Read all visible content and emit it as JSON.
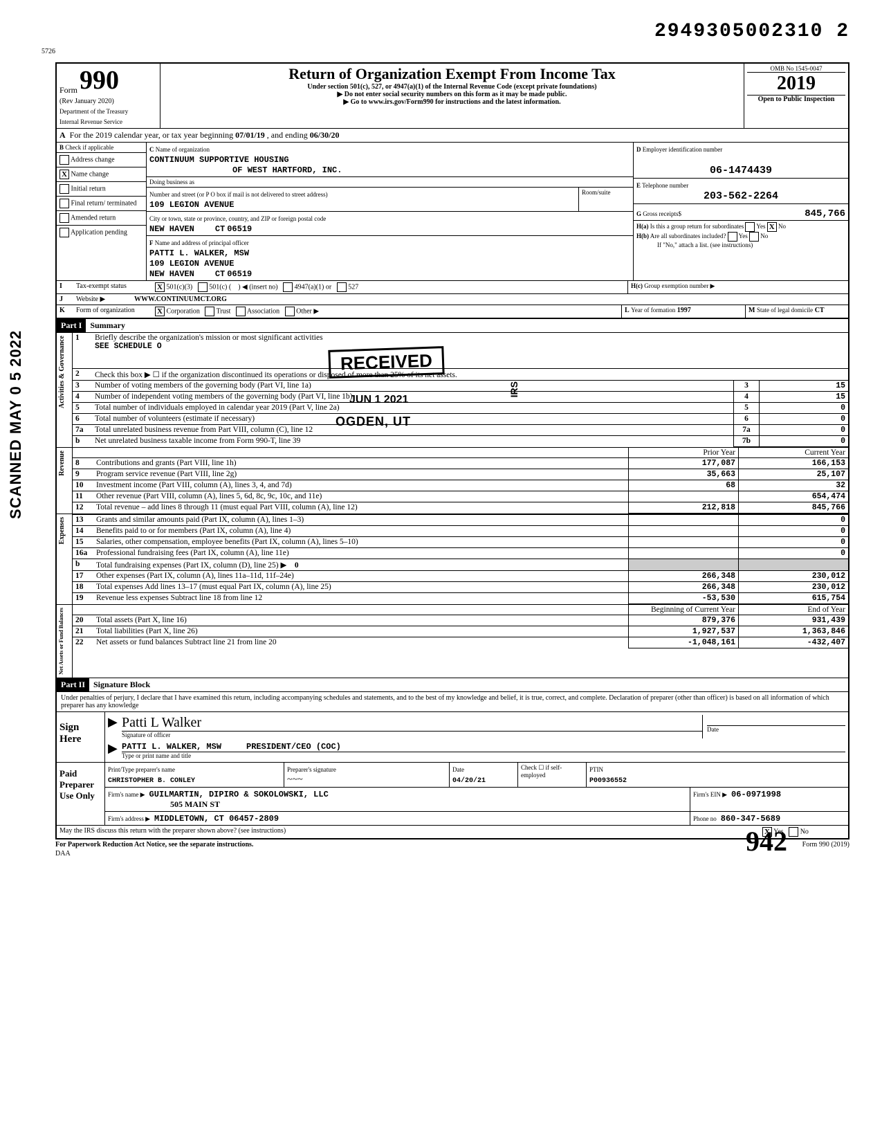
{
  "top_number": "2949305002310 2",
  "sidebar_text": "SCANNED MAY 0 5 2022",
  "header": {
    "form_word": "Form",
    "form_number": "990",
    "rev": "(Rev January 2020)",
    "dept1": "Department of the Treasury",
    "dept2": "Internal Revenue Service",
    "title": "Return of Organization Exempt From Income Tax",
    "subtitle": "Under section 501(c), 527, or 4947(a)(1) of the Internal Revenue Code (except private foundations)",
    "note_ssn": "Do not enter social security numbers on this form as it may be made public.",
    "note_web": "Go to www.irs.gov/Form990 for instructions and the latest information.",
    "omb": "OMB No 1545-0047",
    "year": "2019",
    "open": "Open to Public Inspection"
  },
  "A": {
    "text": "For the 2019 calendar year, or tax year beginning",
    "start": "07/01/19",
    "mid": ", and ending",
    "end": "06/30/20"
  },
  "B": {
    "label": "Check if applicable",
    "items": [
      {
        "label": "Address change",
        "chk": false
      },
      {
        "label": "Name change",
        "chk": true
      },
      {
        "label": "Initial return",
        "chk": false
      },
      {
        "label": "Final return/ terminated",
        "chk": false
      },
      {
        "label": "Amended return",
        "chk": false
      },
      {
        "label": "Application pending",
        "chk": false
      }
    ]
  },
  "C": {
    "name_label": "Name of organization",
    "name": "CONTINUUM SUPPORTIVE HOUSING",
    "name2": "OF WEST HARTFORD, INC.",
    "dba_label": "Doing business as",
    "street_label": "Number and street (or P O box if mail is not delivered to street address)",
    "street": "109 LEGION AVENUE",
    "city_label": "City or town, state or province, country, and ZIP or foreign postal code",
    "city": "NEW HAVEN",
    "state": "CT",
    "zip": "06519",
    "room_label": "Room/suite"
  },
  "D": {
    "label": "Employer identification number",
    "value": "06-1474439"
  },
  "E": {
    "label": "Telephone number",
    "value": "203-562-2264"
  },
  "G": {
    "label": "Gross receipts$",
    "value": "845,766"
  },
  "F": {
    "label": "Name and address of principal officer",
    "name": "PATTI L. WALKER, MSW",
    "street": "109 LEGION AVENUE",
    "city": "NEW HAVEN",
    "state": "CT",
    "zip": "06519"
  },
  "H": {
    "a_label": "Is this a group return for subordinates",
    "a_yes": false,
    "a_no": true,
    "b_label": "Are all subordinates included?",
    "b_note": "If \"No,\" attach a list. (see instructions)",
    "c_label": "Group exemption number"
  },
  "I": {
    "label": "Tax-exempt status",
    "c3": true,
    "c_other": false,
    "insert": "(insert no)",
    "a1": "4947(a)(1) or",
    "five27": "527"
  },
  "J": {
    "label": "Website",
    "value": "WWW.CONTINUUMCT.ORG"
  },
  "K": {
    "label": "Form of organization",
    "corp": true,
    "trust": "Trust",
    "assoc": "Association",
    "other": "Other"
  },
  "L": {
    "label": "Year of formation",
    "value": "1997"
  },
  "M": {
    "label": "State of legal domicile",
    "value": "CT"
  },
  "partI": {
    "title": "Part I",
    "sub": "Summary"
  },
  "gov": {
    "1": "Briefly describe the organization's mission or most significant activities",
    "1a": "SEE SCHEDULE O",
    "2": "Check this box ▶ ☐ if the organization discontinued its operations or disposed of more than 25% of its net assets.",
    "3": "Number of voting members of the governing body (Part VI, line 1a)",
    "4": "Number of independent voting members of the governing body (Part VI, line 1b)",
    "5": "Total number of individuals employed in calendar year 2019 (Part V, line 2a)",
    "6": "Total number of volunteers (estimate if necessary)",
    "7a": "Total unrelated business revenue from Part VIII, column (C), line 12",
    "7b": "Net unrelated business taxable income from Form 990-T, line 39",
    "vals": {
      "3": "15",
      "4": "15",
      "5": "0",
      "6": "0",
      "7a": "0",
      "7b": "0"
    }
  },
  "rev": {
    "prior_hdr": "Prior Year",
    "curr_hdr": "Current Year",
    "rows": [
      {
        "n": "8",
        "label": "Contributions and grants (Part VIII, line 1h)",
        "p": "177,087",
        "c": "166,153"
      },
      {
        "n": "9",
        "label": "Program service revenue (Part VIII, line 2g)",
        "p": "35,663",
        "c": "25,107"
      },
      {
        "n": "10",
        "label": "Investment income (Part VIII, column (A), lines 3, 4, and 7d)",
        "p": "68",
        "c": "32"
      },
      {
        "n": "11",
        "label": "Other revenue (Part VIII, column (A), lines 5, 6d, 8c, 9c, 10c, and 11e)",
        "p": "",
        "c": "654,474"
      },
      {
        "n": "12",
        "label": "Total revenue – add lines 8 through 11 (must equal Part VIII, column (A), line 12)",
        "p": "212,818",
        "c": "845,766"
      }
    ]
  },
  "exp": {
    "rows": [
      {
        "n": "13",
        "label": "Grants and similar amounts paid (Part IX, column (A), lines 1–3)",
        "p": "",
        "c": "0"
      },
      {
        "n": "14",
        "label": "Benefits paid to or for members (Part IX, column (A), line 4)",
        "p": "",
        "c": "0"
      },
      {
        "n": "15",
        "label": "Salaries, other compensation, employee benefits (Part IX, column (A), lines 5–10)",
        "p": "",
        "c": "0"
      },
      {
        "n": "16a",
        "label": "Professional fundraising fees (Part IX, column (A), line 11e)",
        "p": "",
        "c": "0"
      },
      {
        "n": "b",
        "label": "Total fundraising expenses (Part IX, column (D), line 25) ▶",
        "p": "grey",
        "c": "grey",
        "extra": "0"
      },
      {
        "n": "17",
        "label": "Other expenses (Part IX, column (A), lines 11a–11d, 11f–24e)",
        "p": "266,348",
        "c": "230,012"
      },
      {
        "n": "18",
        "label": "Total expenses Add lines 13–17 (must equal Part IX, column (A), line 25)",
        "p": "266,348",
        "c": "230,012"
      },
      {
        "n": "19",
        "label": "Revenue less expenses Subtract line 18 from line 12",
        "p": "-53,530",
        "c": "615,754"
      }
    ]
  },
  "net": {
    "hdr_p": "Beginning of Current Year",
    "hdr_c": "End of Year",
    "rows": [
      {
        "n": "20",
        "label": "Total assets (Part X, line 16)",
        "p": "879,376",
        "c": "931,439"
      },
      {
        "n": "21",
        "label": "Total liabilities (Part X, line 26)",
        "p": "1,927,537",
        "c": "1,363,846"
      },
      {
        "n": "22",
        "label": "Net assets or fund balances Subtract line 21 from line 20",
        "p": "-1,048,161",
        "c": "-432,407"
      }
    ]
  },
  "partII": {
    "title": "Part II",
    "sub": "Signature Block"
  },
  "sigblock": {
    "penalty": "Under penalties of perjury, I declare that I have examined this return, including accompanying schedules and statements, and to the best of my knowledge and belief, it is true, correct, and complete. Declaration of preparer (other than officer) is based on all information of which preparer has any knowledge",
    "sign_here": "Sign Here",
    "officer_sig_label": "Signature of officer",
    "officer_name": "PATTI L. WALKER, MSW",
    "officer_title": "PRESIDENT/CEO (COC)",
    "date_label": "Date",
    "type_label": "Type or print name and title"
  },
  "preparer": {
    "block": "Paid Preparer Use Only",
    "name_label": "Print/Type preparer's name",
    "name": "CHRISTOPHER B. CONLEY",
    "sig_label": "Preparer's signature",
    "date": "04/20/21",
    "check_label": "Check ☐ if self-employed",
    "ptin_label": "PTIN",
    "ptin": "P00936552",
    "firm_name_label": "Firm's name ▶",
    "firm_name": "GUILMARTIN, DIPIRO & SOKOLOWSKI, LLC",
    "firm_street": "505 MAIN ST",
    "firm_addr_label": "Firm's address ▶",
    "firm_city": "MIDDLETOWN, CT   06457-2809",
    "ein_label": "Firm's EIN ▶",
    "ein": "06-0971998",
    "phone_label": "Phone no",
    "phone": "860-347-5689"
  },
  "footer": {
    "discuss": "May the IRS discuss this return with the preparer shown above? (see instructions)",
    "yes": true,
    "no": false,
    "paperwork": "For Paperwork Reduction Act Notice, see the separate instructions.",
    "daa": "DAA",
    "form": "Form 990 (2019)"
  },
  "stamps": {
    "received": "RECEIVED",
    "jun": "JUN 1 2021",
    "ogden": "OGDEN, UT",
    "irs": "IRS",
    "q42": "942"
  },
  "section_labels": {
    "gov": "Governance",
    "act": "Activities &",
    "rev": "Revenue",
    "exp": "Expenses",
    "net": "Net Assets or Fund Balances"
  }
}
